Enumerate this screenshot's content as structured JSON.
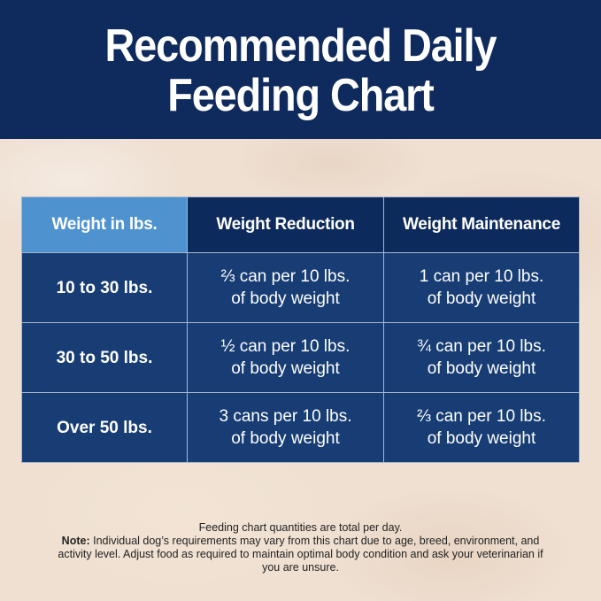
{
  "header": {
    "title_line1": "Recommended Daily",
    "title_line2": "Feeding Chart"
  },
  "table": {
    "headers": [
      "Weight in lbs.",
      "Weight Reduction",
      "Weight Maintenance"
    ],
    "rows": [
      {
        "weight": "10 to 30 lbs.",
        "reduction": [
          "⅔ can per 10 lbs.",
          "of body weight"
        ],
        "maintenance": [
          "1 can per 10 lbs.",
          "of body weight"
        ]
      },
      {
        "weight": "30 to 50 lbs.",
        "reduction": [
          "½ can per 10 lbs.",
          "of body weight"
        ],
        "maintenance": [
          "¾ can per 10 lbs.",
          "of body weight"
        ]
      },
      {
        "weight": "Over 50 lbs.",
        "reduction": [
          "3 cans per 10 lbs.",
          "of body weight"
        ],
        "maintenance": [
          "⅔ can per 10 lbs.",
          "of body weight"
        ]
      }
    ]
  },
  "footnote": {
    "line1": "Feeding chart quantities are total per day.",
    "note_label": "Note:",
    "note_text": "Individual dog’s requirements may vary from this chart due to age, breed, environment, and activity level. Adjust food as required to maintain optimal body condition and ask your veterinarian if you are unsure."
  },
  "colors": {
    "header_bg": "#0f2a5c",
    "table_header_bg": "#0d2a5c",
    "weight_header_bg": "#4e92cf",
    "cell_bg": "#173d74",
    "background": "#efe0d2"
  }
}
